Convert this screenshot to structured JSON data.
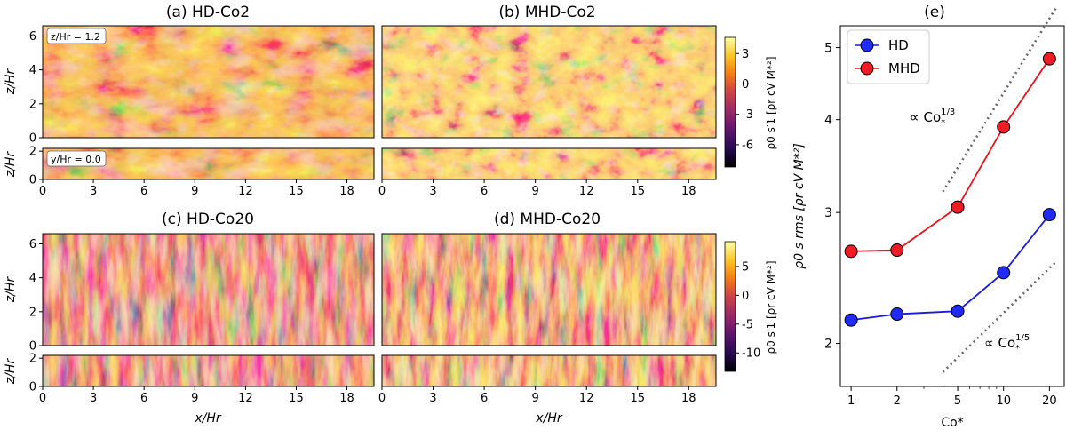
{
  "panels": {
    "a": {
      "title": "(a) HD-Co2"
    },
    "b": {
      "title": "(b) MHD-Co2"
    },
    "c": {
      "title": "(c) HD-Co20"
    },
    "d": {
      "title": "(d) MHD-Co20"
    },
    "e": {
      "title": "(e)"
    }
  },
  "annotations": {
    "z_slice": "z/Hr = 1.2",
    "y_slice": "y/Hr = 0.0"
  },
  "axes": {
    "z_label": "z/Hr",
    "x_label": "x/Hr",
    "x_ticks": [
      "0",
      "3",
      "6",
      "9",
      "12",
      "15",
      "18"
    ],
    "z_ticks_large": [
      "0",
      "2",
      "4",
      "6"
    ],
    "z_ticks_small": [
      "0",
      "2"
    ]
  },
  "colorbars": {
    "top": {
      "label": "ρ0 s′1 [ρr cV M*²]",
      "ticks": [
        "3",
        "0",
        "-3",
        "-6"
      ]
    },
    "bottom": {
      "label": "ρ0 s′1 [ρr cV M*²]",
      "ticks": [
        "5",
        "0",
        "-5",
        "-10"
      ]
    }
  },
  "colors": {
    "hd": "#1a1adb",
    "mhd": "#e8121b",
    "hd_fill": "#1f2bff",
    "mhd_fill": "#ee1c25"
  },
  "chart_data": {
    "type": "line",
    "title": "(e)",
    "xscale": "log",
    "yscale": "log",
    "x": [
      1,
      2,
      5,
      10,
      20
    ],
    "xlabel": "Co*",
    "ylabel": "ρ0 s rms [ρr cV M*²]",
    "xlim": [
      0.85,
      25
    ],
    "ylim": [
      1.75,
      5.35
    ],
    "xticks": [
      "1",
      "2",
      "5",
      "10",
      "20"
    ],
    "yticks": [
      "2",
      "3",
      "4",
      "5"
    ],
    "legend": {
      "position": "top-left"
    },
    "series": [
      {
        "name": "HD",
        "values": [
          2.15,
          2.19,
          2.21,
          2.49,
          2.98
        ]
      },
      {
        "name": "MHD",
        "values": [
          2.66,
          2.67,
          3.05,
          3.91,
          4.83
        ]
      }
    ],
    "reference_lines": [
      {
        "label": "∝ Co*^(1/3)",
        "label_main": "∝ Co",
        "sub": "*",
        "sup": "1/3",
        "x0": 4,
        "x1": 22,
        "y0": 3.2,
        "exponent": 0.3333
      },
      {
        "label": "∝ Co*^(1/5)",
        "label_main": "∝ Co",
        "sub": "*",
        "sup": "1/5",
        "x0": 4,
        "x1": 22,
        "y0": 1.83,
        "exponent": 0.2
      }
    ]
  }
}
